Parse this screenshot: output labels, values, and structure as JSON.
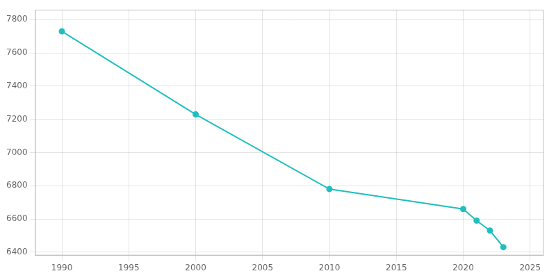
{
  "chart_data": {
    "type": "line",
    "x": [
      1990,
      2000,
      2010,
      2020,
      2021,
      2022,
      2023
    ],
    "values": [
      7730,
      7230,
      6780,
      6660,
      6590,
      6530,
      6430
    ],
    "color": "#20BFBF",
    "marker": "circle",
    "line_style": "solid",
    "xlim": [
      1988,
      2026
    ],
    "ylim": [
      6380,
      7860
    ],
    "xticks": [
      1990,
      1995,
      2000,
      2005,
      2010,
      2015,
      2020,
      2025
    ],
    "yticks": [
      6400,
      6600,
      6800,
      7000,
      7200,
      7400,
      7600,
      7800
    ],
    "grid": true
  }
}
